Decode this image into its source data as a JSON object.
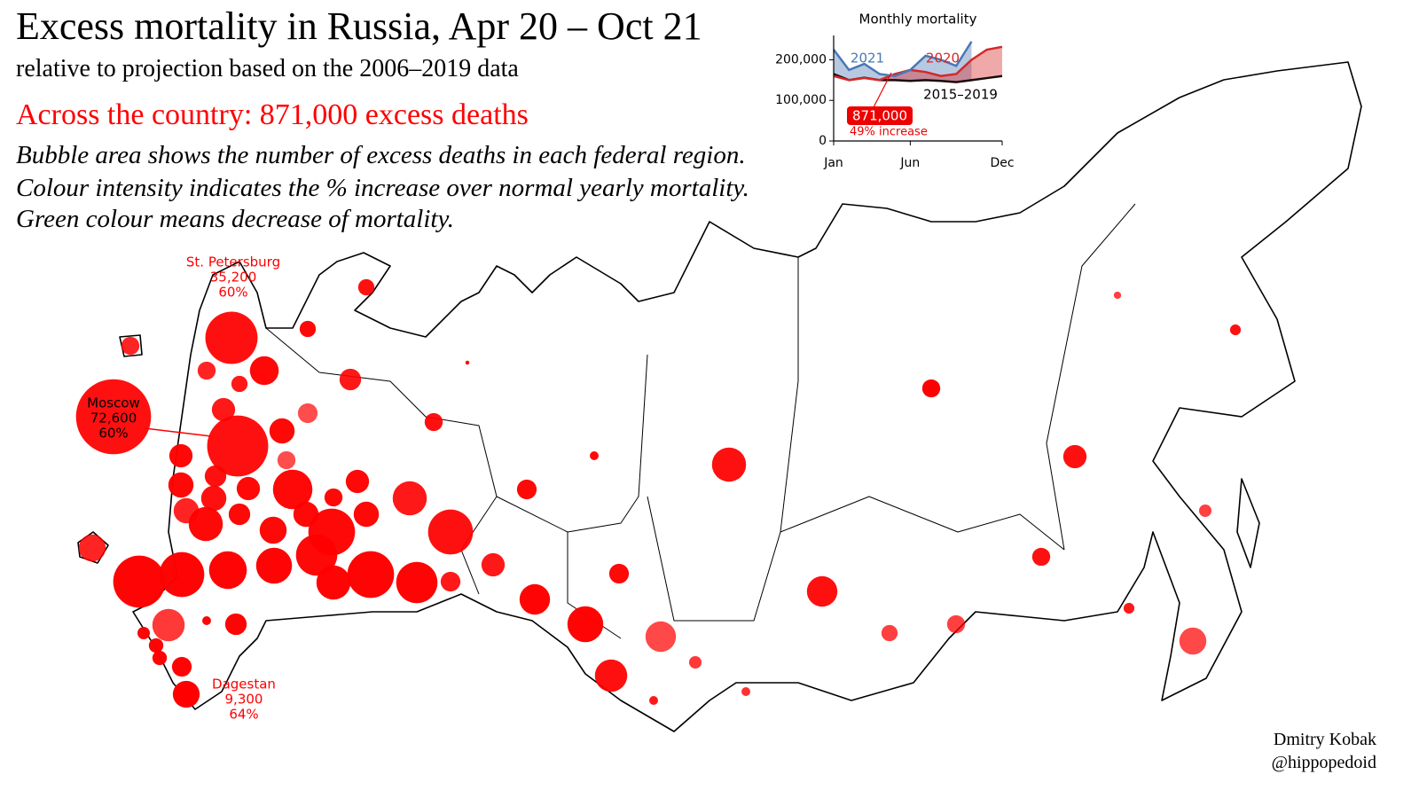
{
  "map": {
    "title": "Excess mortality in Russia, Apr 20 – Oct 21",
    "subtitle": "relative to projection based on the 2006–2019 data",
    "total": "Across the country: 871,000 excess deaths",
    "notes": [
      "Bubble area shows the number of excess deaths in each federal region.",
      "Colour intensity indicates the % increase over normal yearly mortality.",
      "Green colour means decrease of mortality."
    ],
    "credits": [
      "Dmitry Kobak",
      "@hippopedoid"
    ],
    "bubbles": [
      {
        "name": "Moscow",
        "value": 72600,
        "value_label": "72,600",
        "percent": 60,
        "percent_label": "60%"
      },
      {
        "name": "St. Petersburg",
        "value": 35200,
        "value_label": "35,200",
        "percent": 60,
        "percent_label": "60%"
      },
      {
        "name": "Dagestan",
        "value": 9300,
        "value_label": "9,300",
        "percent": 64,
        "percent_label": "64%"
      },
      {
        "value": 48100,
        "percent": 60
      },
      {
        "value": 3400,
        "percent": 60
      },
      {
        "value": 3400,
        "percent": 62
      },
      {
        "value": 4200,
        "percent": 55
      },
      {
        "value": 10700,
        "percent": 62
      },
      {
        "value": 4200,
        "percent": 55
      },
      {
        "value": 3400,
        "percent": 58
      },
      {
        "value": 6000,
        "percent": 58
      },
      {
        "value": 7000,
        "percent": 58
      },
      {
        "value": 5000,
        "percent": 45
      },
      {
        "value": 8200,
        "percent": 62
      },
      {
        "value": 4200,
        "percent": 60
      },
      {
        "value": 7000,
        "percent": 62
      },
      {
        "value": 4200,
        "percent": 45
      },
      {
        "value": 1000,
        "percent": 62
      },
      {
        "value": 15000,
        "percent": 60
      },
      {
        "value": 4200,
        "percent": 64
      },
      {
        "value": 8200,
        "percent": 62
      },
      {
        "value": 6000,
        "percent": 60
      },
      {
        "value": 7000,
        "percent": 62
      },
      {
        "value": 20100,
        "percent": 62
      },
      {
        "value": 7000,
        "percent": 62
      },
      {
        "value": 15000,
        "percent": 58
      },
      {
        "value": 5000,
        "percent": 62
      },
      {
        "value": 4200,
        "percent": 62
      },
      {
        "value": 8200,
        "percent": 60
      },
      {
        "value": 8200,
        "percent": 55
      },
      {
        "value": 6000,
        "percent": 62
      },
      {
        "value": 8200,
        "percent": 62
      },
      {
        "value": 8200,
        "percent": 62
      },
      {
        "value": 15000,
        "percent": 62
      },
      {
        "value": 9400,
        "percent": 62
      },
      {
        "value": 28100,
        "percent": 62
      },
      {
        "value": 26000,
        "percent": 60
      },
      {
        "value": 9400,
        "percent": 55
      },
      {
        "value": 22000,
        "percent": 62
      },
      {
        "value": 35000,
        "percent": 63
      },
      {
        "value": 26000,
        "percent": 63
      },
      {
        "value": 18400,
        "percent": 63
      },
      {
        "value": 16600,
        "percent": 63
      },
      {
        "value": 28100,
        "percent": 63
      },
      {
        "value": 15000,
        "percent": 63
      },
      {
        "value": 22000,
        "percent": 63
      },
      {
        "value": 5000,
        "percent": 58
      },
      {
        "value": 7000,
        "percent": 58
      },
      {
        "value": 5000,
        "percent": 62
      },
      {
        "value": 12000,
        "percent": 63
      },
      {
        "value": 16600,
        "percent": 63
      },
      {
        "value": 12000,
        "percent": 46
      },
      {
        "value": 13500,
        "percent": 60
      },
      {
        "value": 2000,
        "percent": 50
      },
      {
        "value": 1000,
        "percent": 58
      },
      {
        "value": 1000,
        "percent": 52
      },
      {
        "value": 12000,
        "percent": 60
      },
      {
        "value": 3400,
        "percent": 48
      },
      {
        "value": 4200,
        "percent": 48
      },
      {
        "value": 4200,
        "percent": 60
      },
      {
        "value": 7000,
        "percent": 60
      },
      {
        "value": 700,
        "percent": 48
      },
      {
        "value": 1500,
        "percent": 60
      },
      {
        "value": 2000,
        "percent": 48
      },
      {
        "value": 1500,
        "percent": 58
      },
      {
        "value": 9400,
        "percent": 46
      },
      {
        "value": 13500,
        "percent": 50
      },
      {
        "value": 6000,
        "percent": 63
      },
      {
        "value": 1000,
        "percent": 63
      },
      {
        "value": 2000,
        "percent": 63
      },
      {
        "value": 2700,
        "percent": 63
      },
      {
        "value": 2700,
        "percent": 63
      },
      {
        "value": 5000,
        "percent": 63
      },
      {
        "value": 200,
        "percent": 63
      }
    ]
  },
  "chart_data": {
    "type": "line",
    "title": "Monthly mortality",
    "categories": [
      "Jan",
      null,
      null,
      null,
      null,
      "Jun",
      null,
      null,
      null,
      null,
      null,
      "Dec"
    ],
    "series": [
      {
        "name": "2015–2019",
        "color": "#1a0a0a",
        "values": [
          165000,
          150000,
          156000,
          150000,
          150000,
          148000,
          150000,
          148000,
          145000,
          150000,
          155000,
          160000
        ]
      },
      {
        "name": "2020",
        "color": "#d62728",
        "values": [
          160000,
          150000,
          155000,
          150000,
          165000,
          175000,
          170000,
          160000,
          165000,
          200000,
          225000,
          232000
        ]
      },
      {
        "name": "2021",
        "color": "#4a78b5",
        "values": [
          225000,
          175000,
          190000,
          165000,
          160000,
          175000,
          210000,
          200000,
          185000,
          245000,
          null,
          null
        ]
      }
    ],
    "ylim": [
      0,
      260000
    ],
    "yticks": [
      0,
      {
        "value": 100000,
        "label": "100,000"
      },
      {
        "value": 200000,
        "label": "200,000"
      }
    ],
    "annotation": "871,000",
    "annotation_note": "49% increase"
  }
}
